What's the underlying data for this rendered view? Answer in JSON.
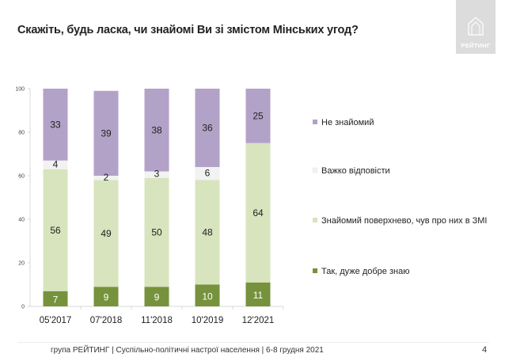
{
  "page": {
    "title": "Скажіть, будь ласка, чи знайомі Ви зі змістом Мінських угод?",
    "logo_text": "РЕЙТИНГ",
    "footer": "група РЕЙТИНГ | Суспільно-політичні настрої населення | 6-8 грудня 2021",
    "page_number": "4"
  },
  "chart_data": {
    "type": "bar",
    "stacked": true,
    "categories": [
      "05'2017",
      "07'2018",
      "11'2018",
      "10'2019",
      "12'2021"
    ],
    "series": [
      {
        "name": "Так, дуже добре знаю",
        "color": "#76923c",
        "values": [
          7,
          9,
          9,
          10,
          11
        ]
      },
      {
        "name": "Знайомий поверхнево, чув про них в ЗМІ",
        "color": "#d7e4bd",
        "values": [
          56,
          49,
          50,
          48,
          64
        ]
      },
      {
        "name": "Важко відповісти",
        "color": "#f2f2f2",
        "values": [
          4,
          2,
          3,
          6,
          0
        ]
      },
      {
        "name": "Не знайомий",
        "color": "#b3a2c7",
        "values": [
          33,
          39,
          38,
          36,
          25
        ]
      }
    ],
    "labels": [
      [
        "7",
        "9",
        "9",
        "10",
        "11"
      ],
      [
        "56",
        "49",
        "50",
        "48",
        "64"
      ],
      [
        "4",
        "2",
        "3",
        "6",
        ""
      ],
      [
        "33",
        "39",
        "38",
        "36",
        "25"
      ]
    ],
    "ylim": [
      0,
      100
    ],
    "yticks": [
      "0",
      "20",
      "40",
      "60",
      "80",
      "100"
    ],
    "legend_position": "right",
    "legend_order": [
      3,
      2,
      1,
      0
    ],
    "grid": false
  }
}
